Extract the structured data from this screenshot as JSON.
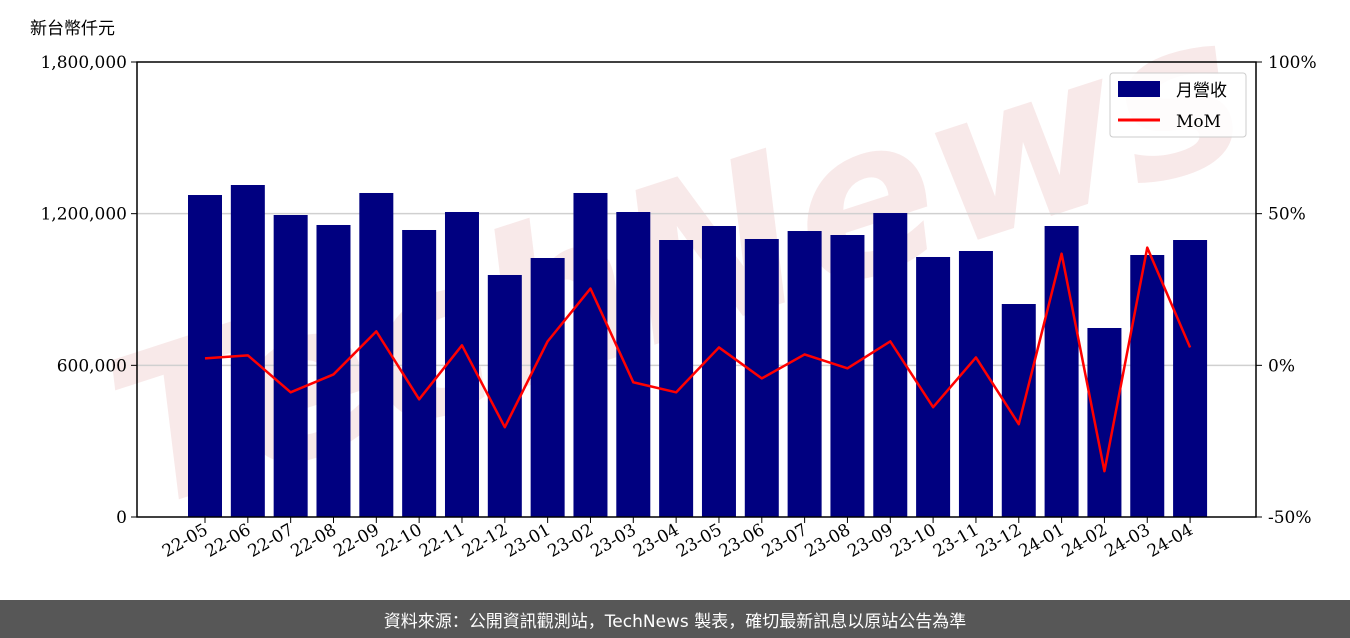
{
  "chart_data": {
    "type": "bar+line",
    "unit_label": "新台幣仟元",
    "categories": [
      "22-05",
      "22-06",
      "22-07",
      "22-08",
      "22-09",
      "22-10",
      "22-11",
      "22-12",
      "23-01",
      "23-02",
      "23-03",
      "23-04",
      "23-05",
      "23-06",
      "23-07",
      "23-08",
      "23-09",
      "23-10",
      "23-11",
      "23-12",
      "24-01",
      "24-02",
      "24-03",
      "24-04"
    ],
    "series": [
      {
        "name": "月營收",
        "type": "bar",
        "axis": "left",
        "color": "#000080",
        "values": [
          1273800,
          1313400,
          1194700,
          1155200,
          1281800,
          1135400,
          1206600,
          957400,
          1024600,
          1281800,
          1206600,
          1095800,
          1151200,
          1099800,
          1131400,
          1115600,
          1202600,
          1028600,
          1052300,
          842600,
          1151200,
          747700,
          1036500,
          1095800
        ]
      },
      {
        "name": "MoM",
        "type": "line",
        "axis": "right",
        "color": "#ff0000",
        "values": [
          2.3,
          3.3,
          -8.9,
          -3.0,
          11.2,
          -11.2,
          6.6,
          -20.4,
          7.9,
          25.3,
          -5.6,
          -8.9,
          5.9,
          -4.3,
          3.6,
          -1.0,
          7.9,
          -13.8,
          2.6,
          -19.4,
          36.8,
          -34.9,
          38.8,
          5.9
        ]
      }
    ],
    "left_axis": {
      "ylim": [
        0,
        1800000
      ],
      "ticks": [
        0,
        600000,
        1200000,
        1800000
      ],
      "tick_labels": [
        "0",
        "600,000",
        "1,200,000",
        "1,800,000"
      ]
    },
    "right_axis": {
      "ylim": [
        -50,
        100
      ],
      "ticks": [
        -50,
        0,
        50,
        100
      ],
      "tick_labels": [
        "-50%",
        "0%",
        "50%",
        "100%"
      ]
    },
    "grid": "horizontal",
    "legend": "top-right",
    "watermark": "TechNews"
  },
  "footer": {
    "text": "資料來源：公開資訊觀測站，TechNews 製表，確切最新訊息以原站公告為準"
  }
}
